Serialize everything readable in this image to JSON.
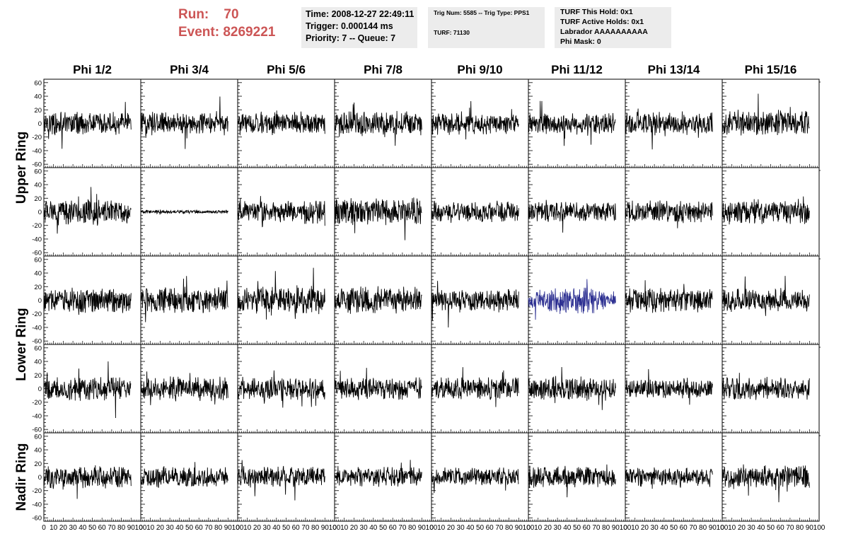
{
  "run": {
    "label": "Run:",
    "value": "70"
  },
  "event": {
    "label": "Event:",
    "value": "8269221"
  },
  "time_box": {
    "time": "Time: 2008-12-27 22:49:11",
    "trigger": "Trigger: 0.000144 ms",
    "priority": "Priority: 7 -- Queue: 7"
  },
  "trig_box": {
    "trig": "Trig Num: 5585 -- Trig Type: PPS1",
    "turf": "TURF: 71130"
  },
  "turf_box": {
    "this_hold": "TURF This Hold: 0x1",
    "active_holds": "TURF Active Holds: 0x1",
    "labrador": "Labrador AAAAAAAAAA",
    "phi_mask": "Phi Mask: 0"
  },
  "column_headers": [
    "Phi 1/2",
    "Phi 3/4",
    "Phi 5/6",
    "Phi 7/8",
    "Phi 9/10",
    "Phi 11/12",
    "Phi 13/14",
    "Phi 15/16"
  ],
  "ring_labels": [
    "Upper Ring",
    "Lower Ring",
    "Nadir Ring"
  ],
  "colors": {
    "trace": "#000000",
    "highlight_trace": "#2e3192",
    "run_text": "#cc5555",
    "info_bg": "#ececec"
  },
  "chart_data": {
    "type": "line",
    "grid": {
      "rows": 5,
      "columns": 8
    },
    "xlim": [
      0,
      100
    ],
    "ylim": [
      -65,
      65
    ],
    "y_ticks": [
      -60,
      -40,
      -20,
      0,
      20,
      40,
      60
    ],
    "x_tick_labels": [
      "0",
      "10",
      "20",
      "30",
      "40",
      "50",
      "60",
      "70",
      "80",
      "90",
      "100"
    ],
    "samples": 260,
    "trace_x_end": 90,
    "highlight_panel": {
      "row": 2,
      "column": 5
    },
    "amplitudes": [
      [
        13,
        13,
        13,
        15,
        13,
        12,
        13,
        14
      ],
      [
        15,
        2,
        13,
        16,
        12,
        12,
        13,
        14
      ],
      [
        14,
        15,
        17,
        15,
        13,
        15,
        14,
        13
      ],
      [
        14,
        14,
        13,
        13,
        13,
        14,
        11,
        13
      ],
      [
        13,
        12,
        12,
        11,
        11,
        13,
        11,
        14
      ]
    ]
  }
}
